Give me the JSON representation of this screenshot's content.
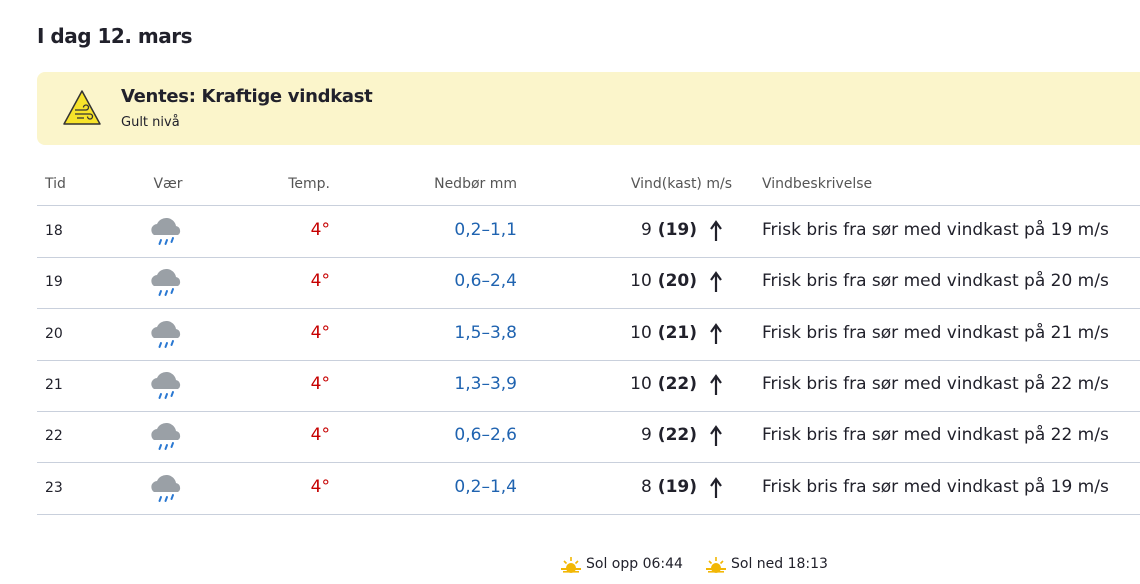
{
  "header": {
    "title": "I dag 12. mars"
  },
  "warning": {
    "title": "Ventes: Kraftige vindkast",
    "level": "Gult nivå"
  },
  "table": {
    "columns": [
      "Tid",
      "Vær",
      "Temp.",
      "Nedbør mm",
      "Vind(kast) m/s",
      "Vindbeskrivelse"
    ],
    "rows": [
      {
        "time": "18",
        "temp": "4°",
        "precip": "0,2–1,1",
        "wind": "9",
        "gust": "(19)",
        "description": "Frisk bris fra sør med vindkast på 19 m/s"
      },
      {
        "time": "19",
        "temp": "4°",
        "precip": "0,6–2,4",
        "wind": "10",
        "gust": "(20)",
        "description": "Frisk bris fra sør med vindkast på 20 m/s"
      },
      {
        "time": "20",
        "temp": "4°",
        "precip": "1,5–3,8",
        "wind": "10",
        "gust": "(21)",
        "description": "Frisk bris fra sør med vindkast på 21 m/s"
      },
      {
        "time": "21",
        "temp": "4°",
        "precip": "1,3–3,9",
        "wind": "10",
        "gust": "(22)",
        "description": "Frisk bris fra sør med vindkast på 22 m/s"
      },
      {
        "time": "22",
        "temp": "4°",
        "precip": "0,6–2,6",
        "wind": "9",
        "gust": "(22)",
        "description": "Frisk bris fra sør med vindkast på 22 m/s"
      },
      {
        "time": "23",
        "temp": "4°",
        "precip": "0,2–1,4",
        "wind": "8",
        "gust": "(19)",
        "description": "Frisk bris fra sør med vindkast på 19 m/s"
      }
    ]
  },
  "footer": {
    "sunrise": "Sol opp 06:44",
    "sunset": "Sol ned 18:13"
  }
}
